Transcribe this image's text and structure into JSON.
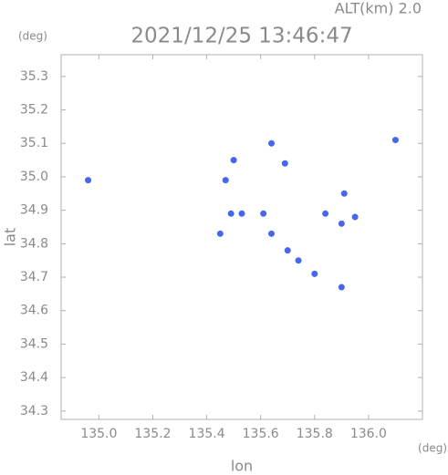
{
  "chart_data": {
    "type": "scatter",
    "title": "2021/12/25 13:46:47",
    "subtitle": "ALT(km)  2.0",
    "y_unit": "(deg)",
    "x_unit": "(deg)",
    "x_label": "lon",
    "y_label": "lat",
    "color": "#4766ee",
    "x": [
      134.96,
      136.1,
      135.5,
      135.64,
      135.69,
      135.47,
      135.49,
      135.53,
      135.61,
      135.45,
      135.64,
      135.84,
      135.91,
      135.95,
      135.9,
      135.74,
      135.8,
      135.9,
      135.7
    ],
    "values": [
      34.99,
      35.11,
      35.05,
      35.1,
      35.04,
      34.99,
      34.89,
      34.89,
      34.89,
      34.83,
      34.83,
      34.89,
      34.95,
      34.88,
      34.86,
      34.75,
      34.71,
      34.67,
      34.78
    ],
    "xlim": [
      134.86,
      136.2
    ],
    "ylim": [
      34.275,
      35.365
    ],
    "xticks": [
      {
        "value": 135,
        "label": "135.0"
      },
      {
        "value": 135.2,
        "label": "135.2"
      },
      {
        "value": 135.4,
        "label": "135.4"
      },
      {
        "value": 135.6,
        "label": "135.6"
      },
      {
        "value": 135.8,
        "label": "135.8"
      },
      {
        "value": 136,
        "label": "136.0"
      }
    ],
    "yticks": [
      34.3,
      34.4,
      34.5,
      34.6,
      34.7,
      34.8,
      34.9,
      {
        "value": 35,
        "label": "35.0"
      },
      35.1,
      35.2,
      35.3
    ]
  }
}
